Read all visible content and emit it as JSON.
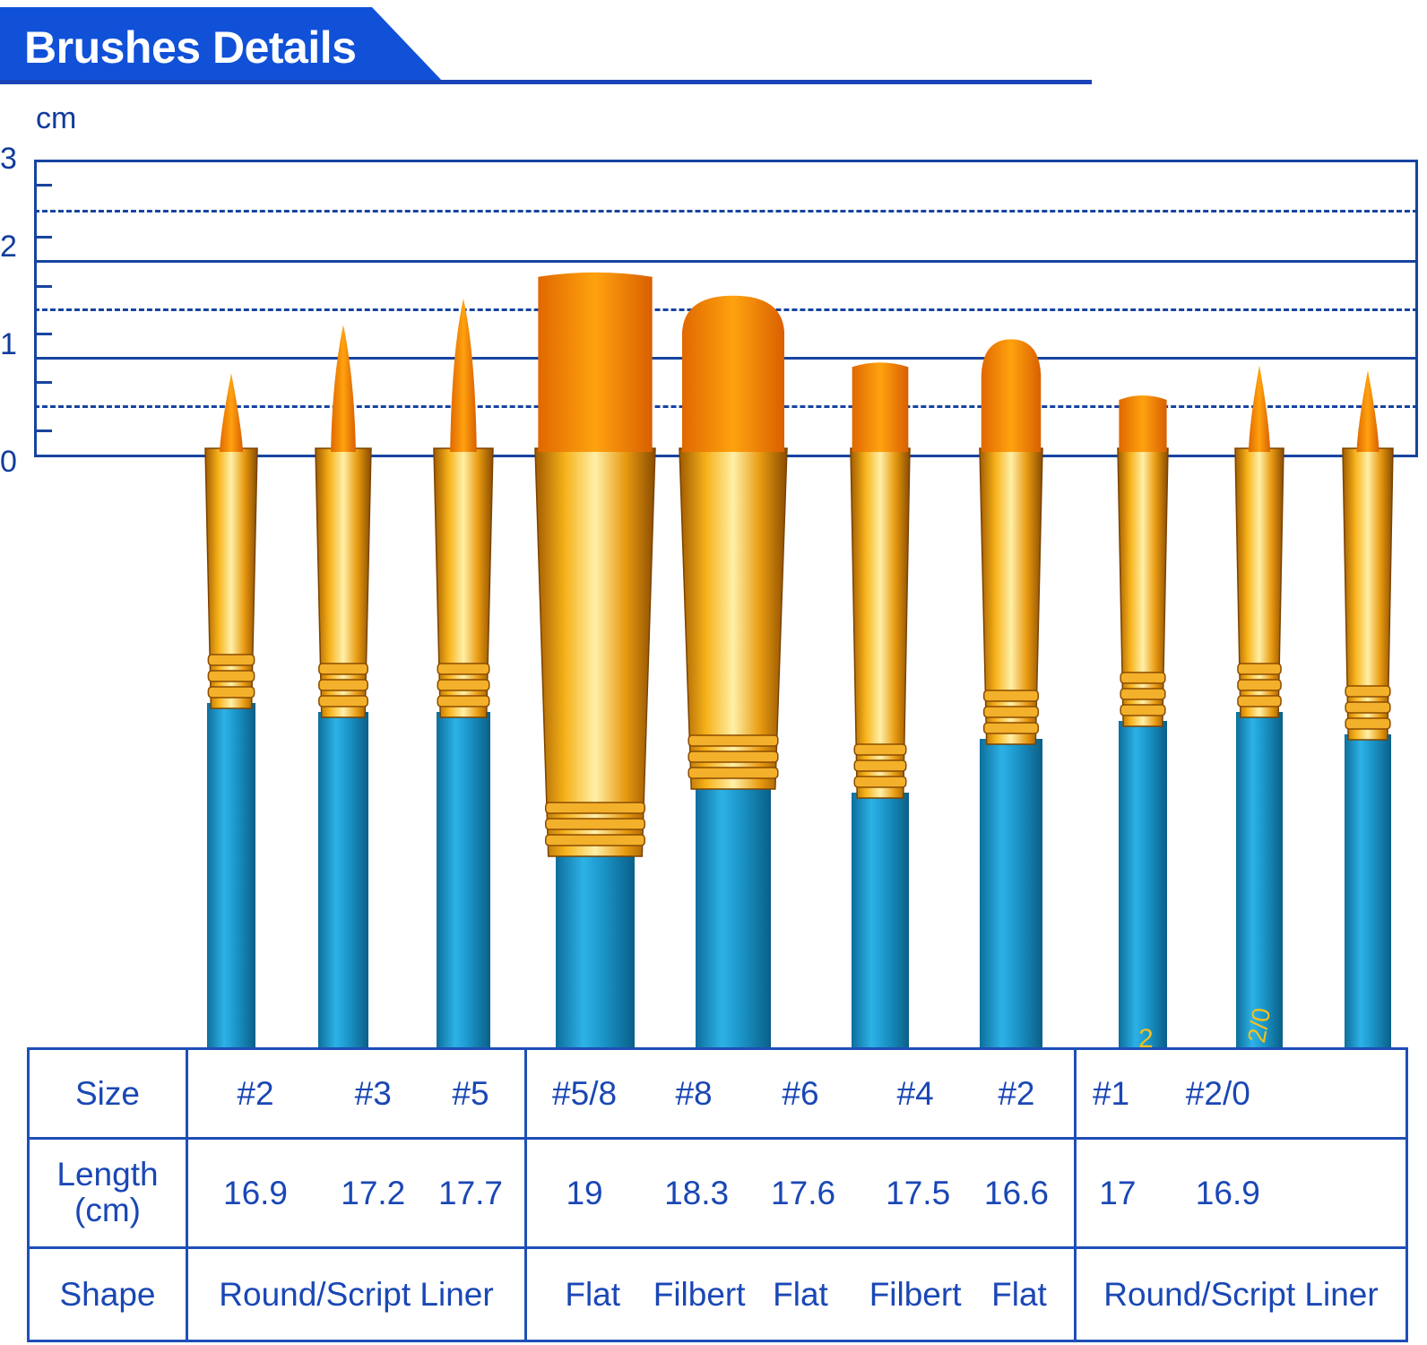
{
  "header": {
    "title": "Brushes Details"
  },
  "scale": {
    "unit": "cm",
    "ticks": [
      "3",
      "2",
      "1",
      "0"
    ]
  },
  "colors": {
    "banner": "#1151d8",
    "lines": "#17449f",
    "table_text": "#1a47b5",
    "bristle": "#ff8c00",
    "ferrule": "#f2a81a",
    "handle": "#1a9ad0"
  },
  "table": {
    "row_headers": {
      "size": "Size",
      "length": "Length\n(cm)",
      "shape": "Shape"
    },
    "groups": [
      {
        "sizes": [
          "#2",
          "#3",
          "#5"
        ],
        "lengths": [
          "16.9",
          "17.2",
          "17.7"
        ],
        "shapes": [
          "Round/Script Liner"
        ]
      },
      {
        "sizes": [
          "#5/8",
          "#8",
          "#6",
          "#4",
          "#2"
        ],
        "lengths": [
          "19",
          "18.3",
          "17.6",
          "17.5",
          "16.6"
        ],
        "shapes": [
          "Flat",
          "Filbert",
          "Flat",
          "Filbert",
          "Flat"
        ]
      },
      {
        "sizes": [
          "#1",
          "#2/0"
        ],
        "lengths": [
          "17",
          "16.9"
        ],
        "shapes": [
          "Round/Script Liner"
        ]
      }
    ]
  },
  "brushes": [
    {
      "size": "#2",
      "shape": "round",
      "bristle_top_cm": 0.85,
      "handle_mark": ""
    },
    {
      "size": "#3",
      "shape": "round",
      "bristle_top_cm": 1.35,
      "handle_mark": ""
    },
    {
      "size": "#5",
      "shape": "round",
      "bristle_top_cm": 1.62,
      "handle_mark": ""
    },
    {
      "size": "#5/8",
      "shape": "flat",
      "bristle_top_cm": 1.9,
      "handle_mark": ""
    },
    {
      "size": "#8",
      "shape": "filbert",
      "bristle_top_cm": 1.65,
      "handle_mark": ""
    },
    {
      "size": "#6",
      "shape": "flat",
      "bristle_top_cm": 0.97,
      "handle_mark": ""
    },
    {
      "size": "#4",
      "shape": "filbert",
      "bristle_top_cm": 1.2,
      "handle_mark": ""
    },
    {
      "size": "#2",
      "shape": "flat",
      "bristle_top_cm": 0.63,
      "handle_mark": "2"
    },
    {
      "size": "#1",
      "shape": "round",
      "bristle_top_cm": 0.93,
      "handle_mark": "2/0"
    },
    {
      "size": "#2/0",
      "shape": "round",
      "bristle_top_cm": 0.88,
      "handle_mark": ""
    }
  ]
}
